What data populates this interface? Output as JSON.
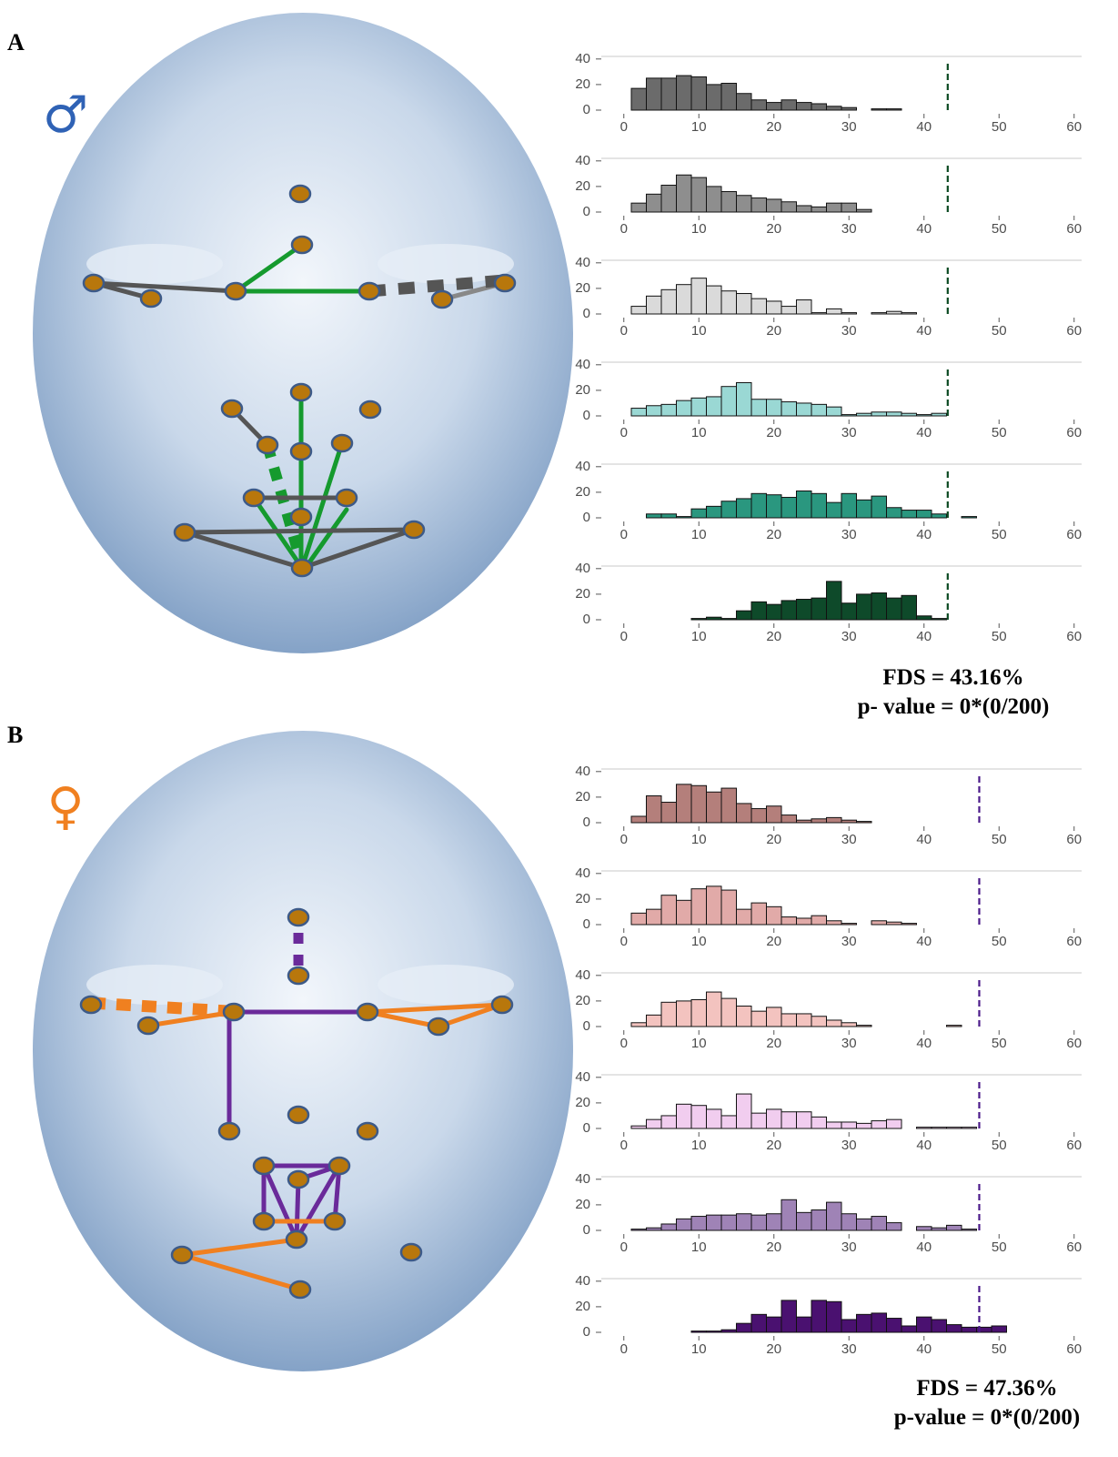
{
  "panels": [
    {
      "label": "A",
      "symbol": "♂",
      "fds": "FDS = 43.16%",
      "pvalue": "p- value = 0*(0/200)"
    },
    {
      "label": "B",
      "symbol": "♀",
      "fds": "FDS = 47.36%",
      "pvalue": "p-value = 0*(0/200)"
    }
  ],
  "chart_data": [
    {
      "type": "histogram",
      "bins": [
        1,
        3,
        5,
        7,
        9,
        11,
        13,
        15,
        17,
        19,
        21,
        23,
        25,
        27,
        29,
        31,
        33,
        35,
        37,
        39,
        41,
        43,
        45,
        47,
        49,
        51,
        53,
        55,
        57,
        59
      ],
      "values": [
        17,
        25,
        25,
        27,
        26,
        20,
        21,
        13,
        8,
        6,
        8,
        6,
        5,
        3,
        2,
        0,
        1,
        1,
        0,
        0,
        0,
        0,
        0,
        0,
        0,
        0,
        0,
        0,
        0
      ],
      "color": "#6b6b6b",
      "xlim": [
        -3,
        61
      ],
      "ylim": [
        0,
        42
      ],
      "xticks": [
        0,
        10,
        20,
        30,
        40,
        50,
        60
      ],
      "yticks": [
        0,
        20,
        40
      ],
      "vline": 43.16,
      "vline_color": "#0b4a22"
    },
    {
      "type": "histogram",
      "bins": [
        1,
        3,
        5,
        7,
        9,
        11,
        13,
        15,
        17,
        19,
        21,
        23,
        25,
        27,
        29,
        31,
        33,
        35,
        37,
        39,
        41,
        43,
        45,
        47,
        49,
        51,
        53,
        55,
        57,
        59
      ],
      "values": [
        7,
        14,
        21,
        29,
        27,
        20,
        16,
        13,
        11,
        10,
        8,
        5,
        4,
        7,
        7,
        2,
        0,
        0,
        0,
        0,
        0,
        0,
        0,
        0,
        0,
        0,
        0,
        0,
        0
      ],
      "color": "#8e8e8e",
      "xlim": [
        -3,
        61
      ],
      "ylim": [
        0,
        42
      ],
      "xticks": [
        0,
        10,
        20,
        30,
        40,
        50,
        60
      ],
      "yticks": [
        0,
        20,
        40
      ],
      "vline": 43.16,
      "vline_color": "#0b4a22"
    },
    {
      "type": "histogram",
      "bins": [
        1,
        3,
        5,
        7,
        9,
        11,
        13,
        15,
        17,
        19,
        21,
        23,
        25,
        27,
        29,
        31,
        33,
        35,
        37,
        39,
        41,
        43,
        45,
        47,
        49,
        51,
        53,
        55,
        57,
        59
      ],
      "values": [
        6,
        14,
        19,
        23,
        28,
        22,
        18,
        16,
        12,
        10,
        6,
        11,
        1,
        4,
        1,
        0,
        1,
        2,
        1,
        0,
        0,
        0,
        0,
        0,
        0,
        0,
        0,
        0,
        0
      ],
      "color": "#dadada",
      "xlim": [
        -3,
        61
      ],
      "ylim": [
        0,
        42
      ],
      "xticks": [
        0,
        10,
        20,
        30,
        40,
        50,
        60
      ],
      "yticks": [
        0,
        20,
        40
      ],
      "vline": 43.16,
      "vline_color": "#0b4a22"
    },
    {
      "type": "histogram",
      "bins": [
        1,
        3,
        5,
        7,
        9,
        11,
        13,
        15,
        17,
        19,
        21,
        23,
        25,
        27,
        29,
        31,
        33,
        35,
        37,
        39,
        41,
        43,
        45,
        47,
        49,
        51,
        53,
        55,
        57,
        59
      ],
      "values": [
        6,
        8,
        9,
        12,
        14,
        15,
        23,
        26,
        13,
        13,
        11,
        10,
        9,
        7,
        1,
        2,
        3,
        3,
        2,
        1,
        2,
        0,
        0,
        0,
        0,
        0,
        0,
        0,
        0
      ],
      "color": "#9ad8d4",
      "xlim": [
        -3,
        61
      ],
      "ylim": [
        0,
        42
      ],
      "xticks": [
        0,
        10,
        20,
        30,
        40,
        50,
        60
      ],
      "yticks": [
        0,
        20,
        40
      ],
      "vline": 43.16,
      "vline_color": "#0b4a22"
    },
    {
      "type": "histogram",
      "bins": [
        1,
        3,
        5,
        7,
        9,
        11,
        13,
        15,
        17,
        19,
        21,
        23,
        25,
        27,
        29,
        31,
        33,
        35,
        37,
        39,
        41,
        43,
        45,
        47,
        49,
        51,
        53,
        55,
        57,
        59
      ],
      "values": [
        0,
        3,
        3,
        1,
        7,
        9,
        13,
        15,
        19,
        18,
        16,
        21,
        19,
        12,
        19,
        14,
        17,
        8,
        6,
        6,
        3,
        0,
        1,
        0,
        0,
        0,
        0,
        0,
        0
      ],
      "color": "#2a977f",
      "xlim": [
        -3,
        61
      ],
      "ylim": [
        0,
        42
      ],
      "xticks": [
        0,
        10,
        20,
        30,
        40,
        50,
        60
      ],
      "yticks": [
        0,
        20,
        40
      ],
      "vline": 43.16,
      "vline_color": "#0b4a22"
    },
    {
      "type": "histogram",
      "bins": [
        1,
        3,
        5,
        7,
        9,
        11,
        13,
        15,
        17,
        19,
        21,
        23,
        25,
        27,
        29,
        31,
        33,
        35,
        37,
        39,
        41,
        43,
        45,
        47,
        49,
        51,
        53,
        55,
        57,
        59
      ],
      "values": [
        0,
        0,
        0,
        0,
        1,
        2,
        1,
        7,
        14,
        12,
        15,
        16,
        17,
        30,
        13,
        20,
        21,
        17,
        19,
        3,
        1,
        0,
        0,
        0,
        0,
        0,
        0,
        0,
        0
      ],
      "color": "#0e4a2a",
      "xlim": [
        -3,
        61
      ],
      "ylim": [
        0,
        42
      ],
      "xticks": [
        0,
        10,
        20,
        30,
        40,
        50,
        60
      ],
      "yticks": [
        0,
        20,
        40
      ],
      "vline": 43.16,
      "vline_color": "#0b4a22"
    },
    {
      "type": "histogram",
      "bins": [
        1,
        3,
        5,
        7,
        9,
        11,
        13,
        15,
        17,
        19,
        21,
        23,
        25,
        27,
        29,
        31,
        33,
        35,
        37,
        39,
        41,
        43,
        45,
        47,
        49,
        51,
        53,
        55,
        57,
        59
      ],
      "values": [
        5,
        21,
        16,
        30,
        29,
        24,
        27,
        15,
        11,
        13,
        6,
        2,
        3,
        4,
        2,
        1,
        0,
        0,
        0,
        0,
        0,
        0,
        0,
        0,
        0,
        0,
        0,
        0,
        0
      ],
      "color": "#b47f7b",
      "xlim": [
        -3,
        61
      ],
      "ylim": [
        0,
        42
      ],
      "xticks": [
        0,
        10,
        20,
        30,
        40,
        50,
        60
      ],
      "yticks": [
        0,
        20,
        40
      ],
      "vline": 47.36,
      "vline_color": "#4b1a8a"
    },
    {
      "type": "histogram",
      "bins": [
        1,
        3,
        5,
        7,
        9,
        11,
        13,
        15,
        17,
        19,
        21,
        23,
        25,
        27,
        29,
        31,
        33,
        35,
        37,
        39,
        41,
        43,
        45,
        47,
        49,
        51,
        53,
        55,
        57,
        59
      ],
      "values": [
        9,
        12,
        23,
        19,
        28,
        30,
        27,
        12,
        17,
        14,
        6,
        5,
        7,
        3,
        1,
        0,
        3,
        2,
        1,
        0,
        0,
        0,
        0,
        0,
        0,
        0,
        0,
        0,
        0
      ],
      "color": "#e1aaa8",
      "xlim": [
        -3,
        61
      ],
      "ylim": [
        0,
        42
      ],
      "xticks": [
        0,
        10,
        20,
        30,
        40,
        50,
        60
      ],
      "yticks": [
        0,
        20,
        40
      ],
      "vline": 47.36,
      "vline_color": "#4b1a8a"
    },
    {
      "type": "histogram",
      "bins": [
        1,
        3,
        5,
        7,
        9,
        11,
        13,
        15,
        17,
        19,
        21,
        23,
        25,
        27,
        29,
        31,
        33,
        35,
        37,
        39,
        41,
        43,
        45,
        47,
        49,
        51,
        53,
        55,
        57,
        59
      ],
      "values": [
        3,
        9,
        19,
        20,
        21,
        27,
        22,
        16,
        12,
        15,
        10,
        10,
        8,
        5,
        3,
        1,
        0,
        0,
        0,
        0,
        0,
        1,
        0,
        0,
        0,
        0,
        0,
        0,
        0
      ],
      "color": "#f3c3bf",
      "xlim": [
        -3,
        61
      ],
      "ylim": [
        0,
        42
      ],
      "xticks": [
        0,
        10,
        20,
        30,
        40,
        50,
        60
      ],
      "yticks": [
        0,
        20,
        40
      ],
      "vline": 47.36,
      "vline_color": "#4b1a8a"
    },
    {
      "type": "histogram",
      "bins": [
        1,
        3,
        5,
        7,
        9,
        11,
        13,
        15,
        17,
        19,
        21,
        23,
        25,
        27,
        29,
        31,
        33,
        35,
        37,
        39,
        41,
        43,
        45,
        47,
        49,
        51,
        53,
        55,
        57,
        59
      ],
      "values": [
        2,
        7,
        10,
        19,
        18,
        15,
        10,
        27,
        12,
        15,
        13,
        13,
        9,
        5,
        5,
        4,
        6,
        7,
        0,
        1,
        1,
        1,
        1,
        0,
        0,
        0,
        0,
        0,
        0
      ],
      "color": "#f1cdef",
      "xlim": [
        -3,
        61
      ],
      "ylim": [
        0,
        42
      ],
      "xticks": [
        0,
        10,
        20,
        30,
        40,
        50,
        60
      ],
      "yticks": [
        0,
        20,
        40
      ],
      "vline": 47.36,
      "vline_color": "#4b1a8a"
    },
    {
      "type": "histogram",
      "bins": [
        1,
        3,
        5,
        7,
        9,
        11,
        13,
        15,
        17,
        19,
        21,
        23,
        25,
        27,
        29,
        31,
        33,
        35,
        37,
        39,
        41,
        43,
        45,
        47,
        49,
        51,
        53,
        55,
        57,
        59
      ],
      "values": [
        1,
        2,
        5,
        9,
        11,
        12,
        12,
        13,
        12,
        13,
        24,
        14,
        16,
        22,
        13,
        9,
        11,
        6,
        0,
        3,
        2,
        4,
        1,
        0,
        0,
        0,
        0,
        0,
        0
      ],
      "color": "#9f83b6",
      "xlim": [
        -3,
        61
      ],
      "ylim": [
        0,
        42
      ],
      "xticks": [
        0,
        10,
        20,
        30,
        40,
        50,
        60
      ],
      "yticks": [
        0,
        20,
        40
      ],
      "vline": 47.36,
      "vline_color": "#4b1a8a"
    },
    {
      "type": "histogram",
      "bins": [
        1,
        3,
        5,
        7,
        9,
        11,
        13,
        15,
        17,
        19,
        21,
        23,
        25,
        27,
        29,
        31,
        33,
        35,
        37,
        39,
        41,
        43,
        45,
        47,
        49,
        51,
        53,
        55,
        57,
        59
      ],
      "values": [
        0,
        0,
        0,
        0,
        1,
        1,
        2,
        7,
        14,
        12,
        25,
        12,
        25,
        24,
        10,
        14,
        15,
        11,
        5,
        12,
        10,
        6,
        4,
        4,
        5,
        0,
        0,
        0,
        0
      ],
      "color": "#4a1170",
      "xlim": [
        -3,
        61
      ],
      "ylim": [
        0,
        42
      ],
      "xticks": [
        0,
        10,
        20,
        30,
        40,
        50,
        60
      ],
      "yticks": [
        0,
        20,
        40
      ],
      "vline": 47.36,
      "vline_color": "#4b1a8a"
    }
  ]
}
